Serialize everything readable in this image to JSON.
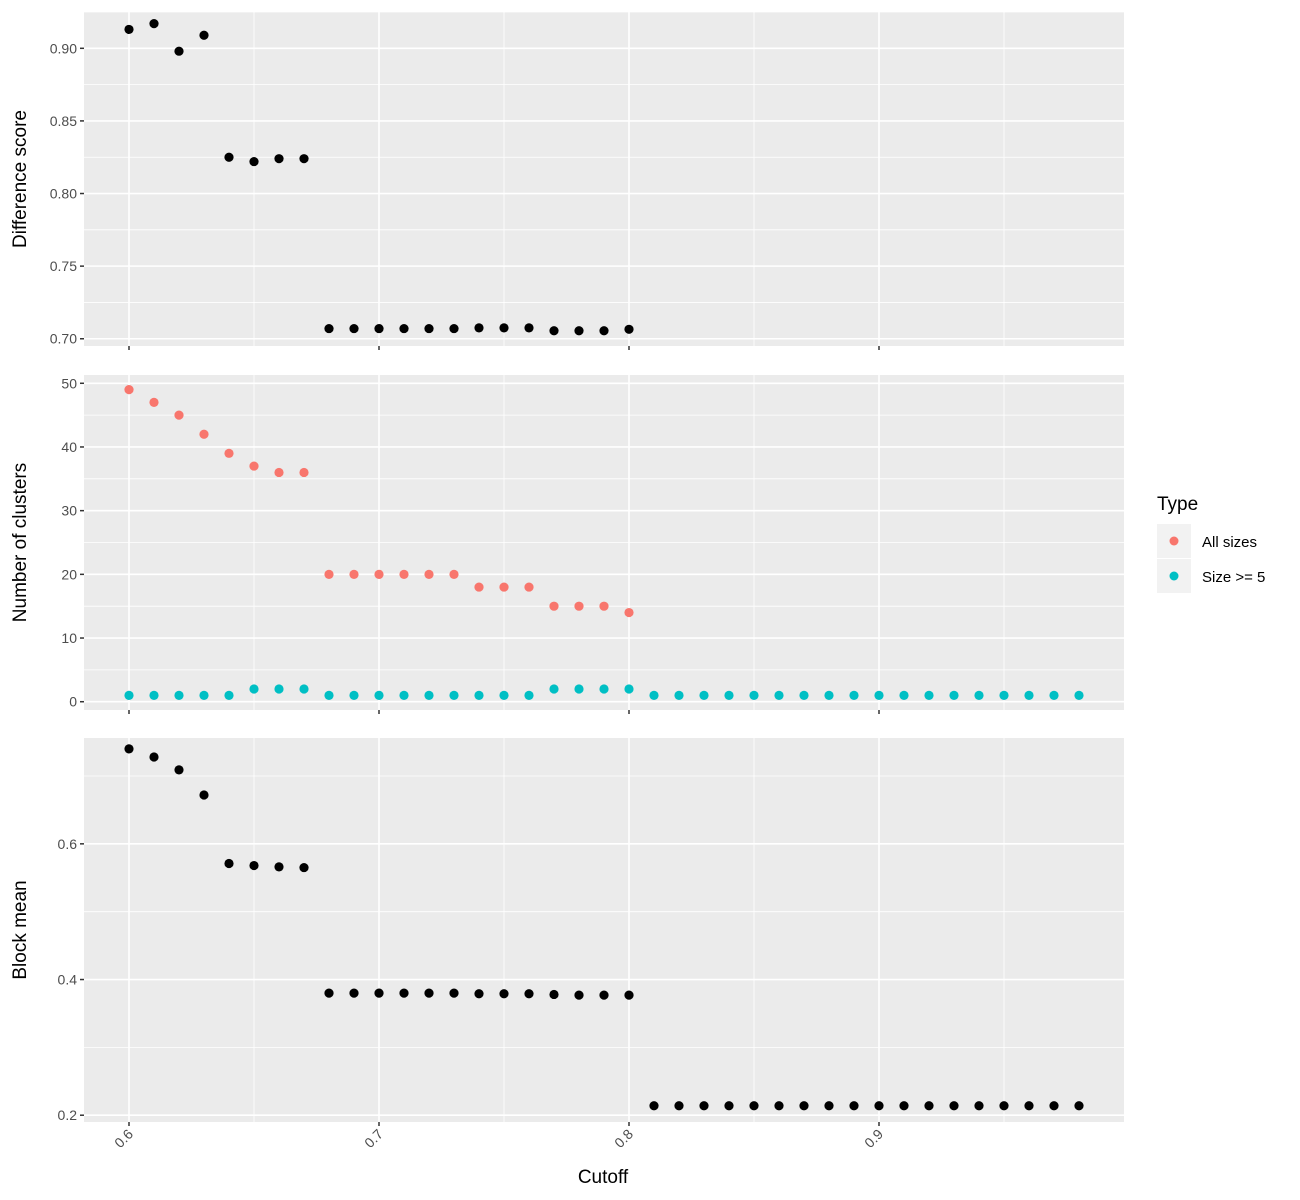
{
  "chart_data": {
    "type": "scatter",
    "x_label": "Cutoff",
    "x_range": [
      0.582,
      0.998
    ],
    "x_ticks": [
      0.6,
      0.7,
      0.8,
      0.9
    ],
    "x_tick_labels": [
      "0.6",
      "0.7",
      "0.8",
      "0.9"
    ],
    "x_minor_ticks": [
      0.65,
      0.75,
      0.85,
      0.95
    ],
    "legend": {
      "title": "Type",
      "placement": "right",
      "entries": [
        {
          "label": "All sizes",
          "color": "#F8766D"
        },
        {
          "label": "Size >= 5",
          "color": "#00BFC4"
        }
      ]
    },
    "panels": [
      {
        "id": "difference",
        "ylabel": "Difference score",
        "ylim": [
          0.695,
          0.925
        ],
        "y_ticks": [
          0.7,
          0.75,
          0.8,
          0.85,
          0.9
        ],
        "y_tick_labels": [
          "0.70",
          "0.75",
          "0.80",
          "0.85",
          "0.90"
        ],
        "y_minor_ticks": [
          0.725,
          0.775,
          0.825,
          0.875,
          0.925
        ],
        "series": [
          {
            "color": "#000000",
            "x": [
              0.6,
              0.61,
              0.62,
              0.63,
              0.64,
              0.65,
              0.66,
              0.67,
              0.68,
              0.69,
              0.7,
              0.71,
              0.72,
              0.73,
              0.74,
              0.75,
              0.76,
              0.77,
              0.78,
              0.79,
              0.8
            ],
            "y": [
              0.913,
              0.917,
              0.898,
              0.909,
              0.825,
              0.822,
              0.824,
              0.824,
              0.707,
              0.707,
              0.707,
              0.707,
              0.707,
              0.707,
              0.7075,
              0.7075,
              0.7075,
              0.7055,
              0.7055,
              0.7055,
              0.7065
            ]
          }
        ]
      },
      {
        "id": "clusters",
        "ylabel": "Number of clusters",
        "ylim": [
          -1.3,
          51.3
        ],
        "y_ticks": [
          0,
          10,
          20,
          30,
          40,
          50
        ],
        "y_tick_labels": [
          "0",
          "10",
          "20",
          "30",
          "40",
          "50"
        ],
        "y_minor_ticks": [
          5,
          15,
          25,
          35,
          45
        ],
        "series": [
          {
            "name": "All sizes",
            "color": "#F8766D",
            "x": [
              0.6,
              0.61,
              0.62,
              0.63,
              0.64,
              0.65,
              0.66,
              0.67,
              0.68,
              0.69,
              0.7,
              0.71,
              0.72,
              0.73,
              0.74,
              0.75,
              0.76,
              0.77,
              0.78,
              0.79,
              0.8
            ],
            "y": [
              49,
              47,
              45,
              42,
              39,
              37,
              36,
              36,
              20,
              20,
              20,
              20,
              20,
              20,
              18,
              18,
              18,
              15,
              15,
              15,
              14
            ]
          },
          {
            "name": "Size >= 5",
            "color": "#00BFC4",
            "x": [
              0.6,
              0.61,
              0.62,
              0.63,
              0.64,
              0.65,
              0.66,
              0.67,
              0.68,
              0.69,
              0.7,
              0.71,
              0.72,
              0.73,
              0.74,
              0.75,
              0.76,
              0.77,
              0.78,
              0.79,
              0.8,
              0.81,
              0.82,
              0.83,
              0.84,
              0.85,
              0.86,
              0.87,
              0.88,
              0.89,
              0.9,
              0.91,
              0.92,
              0.93,
              0.94,
              0.95,
              0.96,
              0.97,
              0.98
            ],
            "y": [
              1,
              1,
              1,
              1,
              1,
              2,
              2,
              2,
              1,
              1,
              1,
              1,
              1,
              1,
              1,
              1,
              1,
              2,
              2,
              2,
              2,
              1,
              1,
              1,
              1,
              1,
              1,
              1,
              1,
              1,
              1,
              1,
              1,
              1,
              1,
              1,
              1,
              1,
              1
            ]
          }
        ]
      },
      {
        "id": "blockmean",
        "ylabel": "Block mean",
        "ylim": [
          0.19,
          0.756
        ],
        "y_ticks": [
          0.2,
          0.4,
          0.6
        ],
        "y_tick_labels": [
          "0.2",
          "0.4",
          "0.6"
        ],
        "y_minor_ticks": [
          0.3,
          0.5,
          0.7
        ],
        "series": [
          {
            "color": "#000000",
            "x": [
              0.6,
              0.61,
              0.62,
              0.63,
              0.64,
              0.65,
              0.66,
              0.67,
              0.68,
              0.69,
              0.7,
              0.71,
              0.72,
              0.73,
              0.74,
              0.75,
              0.76,
              0.77,
              0.78,
              0.79,
              0.8,
              0.81,
              0.82,
              0.83,
              0.84,
              0.85,
              0.86,
              0.87,
              0.88,
              0.89,
              0.9,
              0.91,
              0.92,
              0.93,
              0.94,
              0.95,
              0.96,
              0.97,
              0.98
            ],
            "y": [
              0.74,
              0.728,
              0.709,
              0.672,
              0.571,
              0.568,
              0.566,
              0.565,
              0.38,
              0.38,
              0.38,
              0.38,
              0.38,
              0.38,
              0.379,
              0.379,
              0.379,
              0.378,
              0.377,
              0.377,
              0.377,
              0.214,
              0.214,
              0.214,
              0.214,
              0.214,
              0.214,
              0.214,
              0.214,
              0.214,
              0.214,
              0.214,
              0.214,
              0.214,
              0.214,
              0.214,
              0.214,
              0.214,
              0.214
            ]
          }
        ]
      }
    ]
  }
}
